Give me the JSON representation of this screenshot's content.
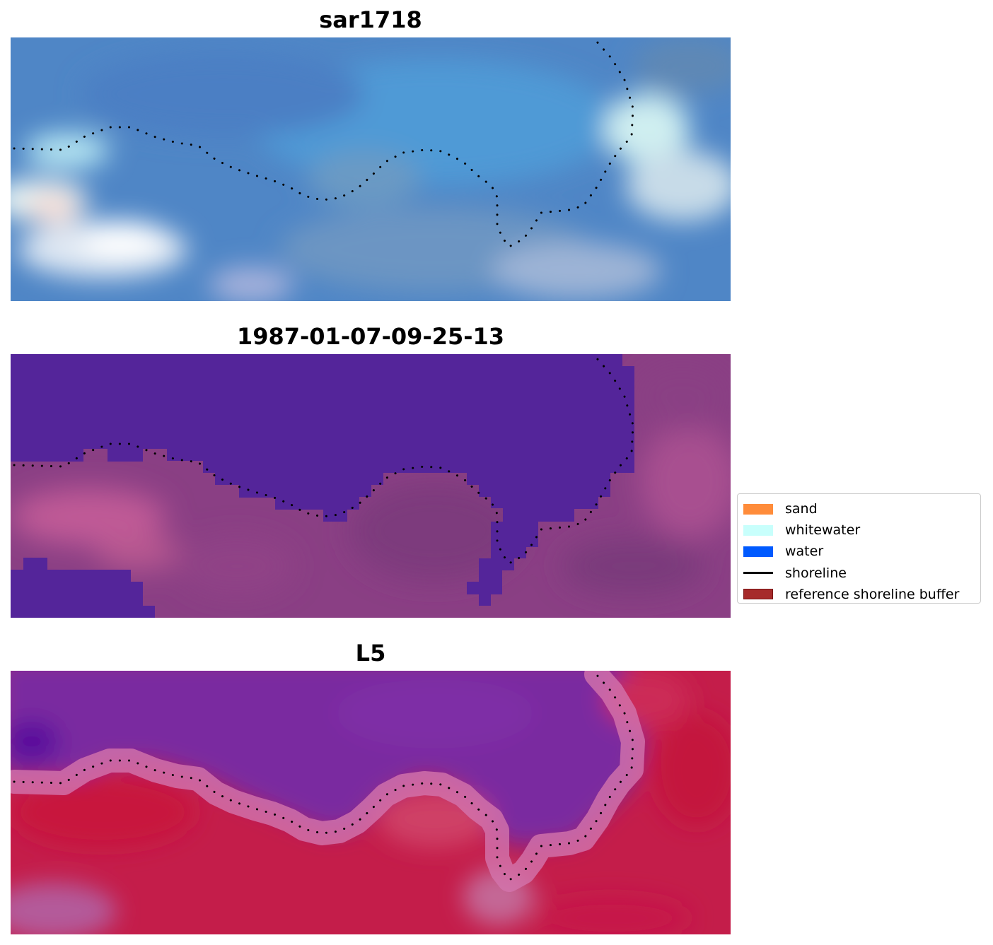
{
  "chart_data": [
    {
      "type": "heatmap",
      "title": "sar1718",
      "style": "satellite RGB image, blue tones",
      "show_shoreline": true
    },
    {
      "type": "heatmap",
      "title": "1987-01-07-09-25-13",
      "style": "classified image, water purple over magenta land",
      "show_shoreline": true
    },
    {
      "type": "heatmap",
      "title": "L5",
      "style": "index image, purple water to red land",
      "show_shoreline": true
    }
  ],
  "legend": {
    "placement": "center-right",
    "items": [
      {
        "label": "sand",
        "kind": "patch",
        "color": "#ff8c3a"
      },
      {
        "label": "whitewater",
        "kind": "patch",
        "color": "#c8fffc"
      },
      {
        "label": "water",
        "kind": "patch",
        "color": "#005aff"
      },
      {
        "label": "shoreline",
        "kind": "line",
        "color": "#000000"
      },
      {
        "label": "reference shoreline buffer",
        "kind": "patch",
        "color": "#a62a2a"
      }
    ]
  },
  "colors": {
    "panel1_base": "#4f86c6",
    "panel1_light": "#dfeff5",
    "panel2_water": "#54259a",
    "panel2_land": "#8a3f84",
    "panel3_water": "#7a2aa0",
    "panel3_land": "#c41d4a"
  }
}
